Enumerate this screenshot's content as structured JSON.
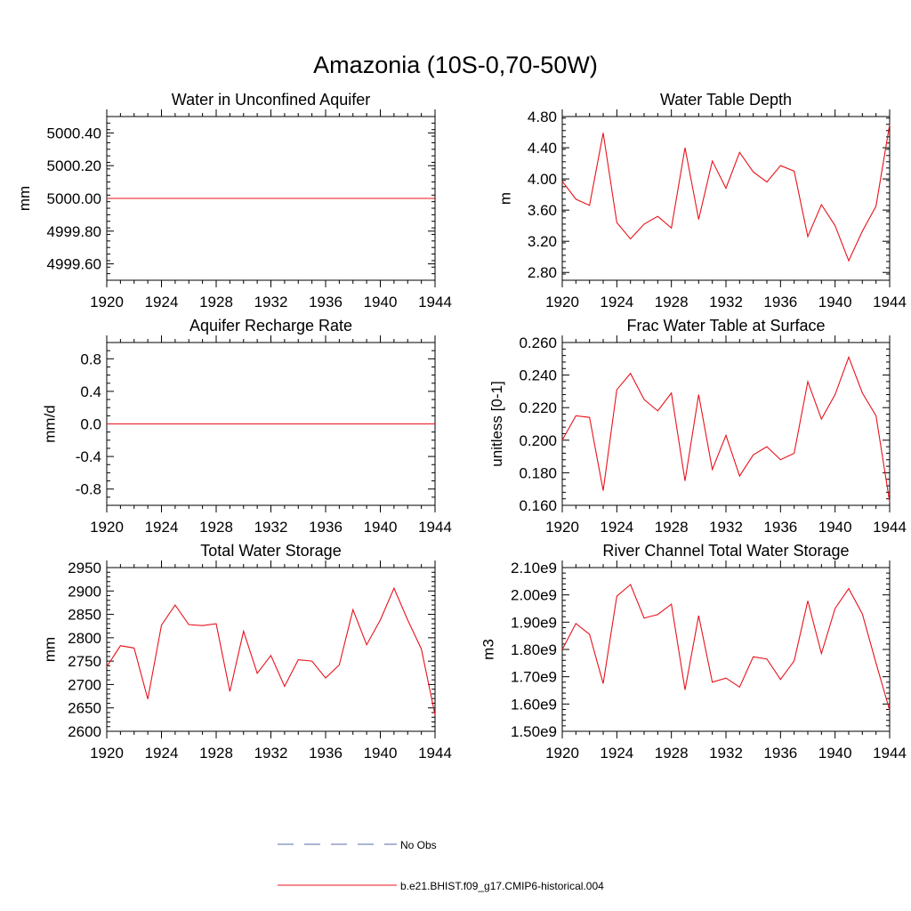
{
  "title": "Amazonia (10S-0,70-50W)",
  "colors": {
    "model": "#e8121c",
    "obs": "#5a6aa8",
    "axis": "#000000"
  },
  "legend": [
    {
      "label": "No Obs",
      "style": "dashed",
      "color": "#5a6aa8"
    },
    {
      "label": "b.e21.BHIST.f09_g17.CMIP6-historical.004",
      "style": "solid",
      "color": "#e8121c"
    }
  ],
  "chart_data": [
    {
      "type": "line",
      "title": "Water in Unconfined Aquifer",
      "xlabel": "",
      "ylabel": "mm",
      "xlim": [
        1920,
        1944
      ],
      "ylim": [
        4999.5,
        5000.5
      ],
      "xticks": [
        1920,
        1924,
        1928,
        1932,
        1936,
        1940,
        1944
      ],
      "xtick_labels": [
        "1920",
        "1924",
        "1928",
        "1932",
        "1936",
        "1940",
        "1944"
      ],
      "yticks": [
        4999.6,
        4999.8,
        5000.0,
        5000.2,
        5000.4
      ],
      "ytick_labels": [
        "4999.60",
        "4999.80",
        "5000.00",
        "5000.20",
        "5000.40"
      ],
      "yminor": 0.04,
      "x": [
        1920,
        1921,
        1922,
        1923,
        1924,
        1925,
        1926,
        1927,
        1928,
        1929,
        1930,
        1931,
        1932,
        1933,
        1934,
        1935,
        1936,
        1937,
        1938,
        1939,
        1940,
        1941,
        1942,
        1943,
        1944
      ],
      "series": [
        {
          "name": "b.e21.BHIST.f09_g17.CMIP6-historical.004",
          "values": [
            5000,
            5000,
            5000,
            5000,
            5000,
            5000,
            5000,
            5000,
            5000,
            5000,
            5000,
            5000,
            5000,
            5000,
            5000,
            5000,
            5000,
            5000,
            5000,
            5000,
            5000,
            5000,
            5000,
            5000,
            5000
          ]
        }
      ]
    },
    {
      "type": "line",
      "title": "Water Table Depth",
      "xlabel": "",
      "ylabel": "m",
      "xlim": [
        1920,
        1944
      ],
      "ylim": [
        2.7,
        4.8
      ],
      "xticks": [
        1920,
        1924,
        1928,
        1932,
        1936,
        1940,
        1944
      ],
      "xtick_labels": [
        "1920",
        "1924",
        "1928",
        "1932",
        "1936",
        "1940",
        "1944"
      ],
      "yticks": [
        2.8,
        3.2,
        3.6,
        4.0,
        4.4,
        4.8
      ],
      "ytick_labels": [
        "2.80",
        "3.20",
        "3.60",
        "4.00",
        "4.40",
        "4.80"
      ],
      "yminor": 0.08,
      "x": [
        1920,
        1921,
        1922,
        1923,
        1924,
        1925,
        1926,
        1927,
        1928,
        1929,
        1930,
        1931,
        1932,
        1933,
        1934,
        1935,
        1936,
        1937,
        1938,
        1939,
        1940,
        1941,
        1942,
        1943,
        1944
      ],
      "series": [
        {
          "name": "b.e21.BHIST.f09_g17.CMIP6-historical.004",
          "values": [
            3.97,
            3.74,
            3.66,
            4.59,
            3.44,
            3.23,
            3.42,
            3.52,
            3.37,
            4.4,
            3.48,
            4.23,
            3.88,
            4.34,
            4.09,
            3.96,
            4.17,
            4.1,
            3.26,
            3.67,
            3.4,
            2.95,
            3.33,
            3.65,
            4.7
          ]
        }
      ]
    },
    {
      "type": "line",
      "title": "Aquifer Recharge Rate",
      "xlabel": "",
      "ylabel": "mm/d",
      "xlim": [
        1920,
        1944
      ],
      "ylim": [
        -1.0,
        1.0
      ],
      "xticks": [
        1920,
        1924,
        1928,
        1932,
        1936,
        1940,
        1944
      ],
      "xtick_labels": [
        "1920",
        "1924",
        "1928",
        "1932",
        "1936",
        "1940",
        "1944"
      ],
      "yticks": [
        -0.8,
        -0.4,
        0.0,
        0.4,
        0.8
      ],
      "ytick_labels": [
        "-0.8",
        "-0.4",
        "0.0",
        "0.4",
        "0.8"
      ],
      "yminor": 0.1,
      "x": [
        1920,
        1921,
        1922,
        1923,
        1924,
        1925,
        1926,
        1927,
        1928,
        1929,
        1930,
        1931,
        1932,
        1933,
        1934,
        1935,
        1936,
        1937,
        1938,
        1939,
        1940,
        1941,
        1942,
        1943,
        1944
      ],
      "series": [
        {
          "name": "b.e21.BHIST.f09_g17.CMIP6-historical.004",
          "values": [
            0,
            0,
            0,
            0,
            0,
            0,
            0,
            0,
            0,
            0,
            0,
            0,
            0,
            0,
            0,
            0,
            0,
            0,
            0,
            0,
            0,
            0,
            0,
            0,
            0
          ]
        }
      ]
    },
    {
      "type": "line",
      "title": "Frac Water Table at Surface",
      "xlabel": "",
      "ylabel": "unitless [0-1]",
      "xlim": [
        1920,
        1944
      ],
      "ylim": [
        0.16,
        0.26
      ],
      "xticks": [
        1920,
        1924,
        1928,
        1932,
        1936,
        1940,
        1944
      ],
      "xtick_labels": [
        "1920",
        "1924",
        "1928",
        "1932",
        "1936",
        "1940",
        "1944"
      ],
      "yticks": [
        0.16,
        0.18,
        0.2,
        0.22,
        0.24,
        0.26
      ],
      "ytick_labels": [
        "0.160",
        "0.180",
        "0.200",
        "0.220",
        "0.240",
        "0.260"
      ],
      "yminor": 0.004,
      "x": [
        1920,
        1921,
        1922,
        1923,
        1924,
        1925,
        1926,
        1927,
        1928,
        1929,
        1930,
        1931,
        1932,
        1933,
        1934,
        1935,
        1936,
        1937,
        1938,
        1939,
        1940,
        1941,
        1942,
        1943,
        1944
      ],
      "series": [
        {
          "name": "b.e21.BHIST.f09_g17.CMIP6-historical.004",
          "values": [
            0.2,
            0.215,
            0.214,
            0.169,
            0.231,
            0.241,
            0.225,
            0.218,
            0.229,
            0.175,
            0.228,
            0.182,
            0.203,
            0.178,
            0.191,
            0.196,
            0.188,
            0.192,
            0.236,
            0.213,
            0.228,
            0.251,
            0.229,
            0.215,
            0.162
          ]
        }
      ]
    },
    {
      "type": "line",
      "title": "Total Water Storage",
      "xlabel": "",
      "ylabel": "mm",
      "xlim": [
        1920,
        1944
      ],
      "ylim": [
        2600,
        2950
      ],
      "xticks": [
        1920,
        1924,
        1928,
        1932,
        1936,
        1940,
        1944
      ],
      "xtick_labels": [
        "1920",
        "1924",
        "1928",
        "1932",
        "1936",
        "1940",
        "1944"
      ],
      "yticks": [
        2600,
        2650,
        2700,
        2750,
        2800,
        2850,
        2900,
        2950
      ],
      "ytick_labels": [
        "2600",
        "2650",
        "2700",
        "2750",
        "2800",
        "2850",
        "2900",
        "2950"
      ],
      "yminor": 10,
      "x": [
        1920,
        1921,
        1922,
        1923,
        1924,
        1925,
        1926,
        1927,
        1928,
        1929,
        1930,
        1931,
        1932,
        1933,
        1934,
        1935,
        1936,
        1937,
        1938,
        1939,
        1940,
        1941,
        1942,
        1943,
        1944
      ],
      "series": [
        {
          "name": "b.e21.BHIST.f09_g17.CMIP6-historical.004",
          "values": [
            2738,
            2783,
            2778,
            2669,
            2827,
            2870,
            2828,
            2826,
            2830,
            2685,
            2814,
            2724,
            2762,
            2696,
            2753,
            2750,
            2714,
            2742,
            2860,
            2785,
            2838,
            2906,
            2838,
            2776,
            2635
          ]
        }
      ]
    },
    {
      "type": "line",
      "title": "River Channel Total Water Storage",
      "xlabel": "",
      "ylabel": "m3",
      "xlim": [
        1920,
        1944
      ],
      "ylim": [
        1.5,
        2.1
      ],
      "value_unit": "1e9",
      "xticks": [
        1920,
        1924,
        1928,
        1932,
        1936,
        1940,
        1944
      ],
      "xtick_labels": [
        "1920",
        "1924",
        "1928",
        "1932",
        "1936",
        "1940",
        "1944"
      ],
      "yticks": [
        1.5,
        1.6,
        1.7,
        1.8,
        1.9,
        2.0,
        2.1
      ],
      "ytick_labels": [
        "1.50e9",
        "1.60e9",
        "1.70e9",
        "1.80e9",
        "1.90e9",
        "2.00e9",
        "2.10e9"
      ],
      "yminor": 0.02,
      "x": [
        1920,
        1921,
        1922,
        1923,
        1924,
        1925,
        1926,
        1927,
        1928,
        1929,
        1930,
        1931,
        1932,
        1933,
        1934,
        1935,
        1936,
        1937,
        1938,
        1939,
        1940,
        1941,
        1942,
        1943,
        1944
      ],
      "series": [
        {
          "name": "b.e21.BHIST.f09_g17.CMIP6-historical.004",
          "values": [
            1.8,
            1.895,
            1.855,
            1.675,
            1.995,
            2.038,
            1.915,
            1.928,
            1.966,
            1.652,
            1.924,
            1.68,
            1.695,
            1.662,
            1.773,
            1.765,
            1.69,
            1.758,
            1.978,
            1.785,
            1.95,
            2.023,
            1.93,
            1.75,
            1.577
          ]
        }
      ]
    }
  ]
}
